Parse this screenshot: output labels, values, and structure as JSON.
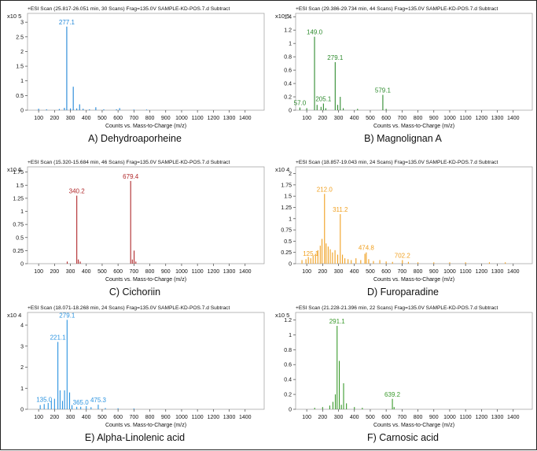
{
  "chart_data": [
    {
      "type": "bar",
      "header": "+ESI Scan (25.817-26.051 min, 30 Scans) Frag=135.0V SAMPLE-KD-POS.7.d  Subtract",
      "exponent_label": "x10 5",
      "xlabel": "Counts vs. Mass-to-Charge (m/z)",
      "caption": "A) Dehydroaporheine",
      "color": "#1f86d8",
      "xlim": [
        30,
        1520
      ],
      "ylim": [
        0,
        3.3
      ],
      "xticks": [
        100,
        200,
        300,
        400,
        500,
        600,
        700,
        800,
        900,
        1000,
        1100,
        1200,
        1300,
        1400
      ],
      "yticks": [
        "0",
        "0.5",
        "1",
        "1.5",
        "2",
        "2.5",
        "3"
      ],
      "ytick_values": [
        0,
        0.5,
        1,
        1.5,
        2,
        2.5,
        3
      ],
      "peaks": [
        [
          100,
          0.05
        ],
        [
          150,
          0.03
        ],
        [
          230,
          0.04
        ],
        [
          262,
          0.08
        ],
        [
          277.1,
          2.85
        ],
        [
          300,
          0.06
        ],
        [
          318,
          0.8
        ],
        [
          340,
          0.06
        ],
        [
          358,
          0.2
        ],
        [
          380,
          0.05
        ],
        [
          420,
          0.03
        ],
        [
          460,
          0.1
        ],
        [
          510,
          0.03
        ],
        [
          590,
          0.03
        ],
        [
          610,
          0.07
        ],
        [
          700,
          0.02
        ],
        [
          780,
          0.02
        ]
      ],
      "labels": [
        {
          "mz": 277.1,
          "text": "277.1"
        }
      ]
    },
    {
      "type": "bar",
      "header": "+ESI Scan (29.386-29.734 min, 44 Scans) Frag=135.0V SAMPLE-KD-POS.7.d  Subtract",
      "exponent_label": "x10 5",
      "xlabel": "Counts vs. Mass-to-Charge (m/z)",
      "caption": "B) Magnolignan A",
      "color": "#2e8b2e",
      "xlim": [
        30,
        1520
      ],
      "ylim": [
        0,
        1.45
      ],
      "xticks": [
        100,
        200,
        300,
        400,
        500,
        600,
        700,
        800,
        900,
        1000,
        1100,
        1200,
        1300,
        1400
      ],
      "yticks": [
        "0",
        "0.2",
        "0.4",
        "0.6",
        "0.8",
        "1",
        "1.2",
        "1.4"
      ],
      "ytick_values": [
        0,
        0.2,
        0.4,
        0.6,
        0.8,
        1,
        1.2,
        1.4
      ],
      "peaks": [
        [
          57,
          0.04
        ],
        [
          100,
          0.03
        ],
        [
          149,
          1.1
        ],
        [
          165,
          0.08
        ],
        [
          190,
          0.05
        ],
        [
          205.1,
          0.1
        ],
        [
          220,
          0.03
        ],
        [
          279.1,
          0.72
        ],
        [
          295,
          0.08
        ],
        [
          311,
          0.2
        ],
        [
          330,
          0.03
        ],
        [
          420,
          0.02
        ],
        [
          579.1,
          0.23
        ],
        [
          600,
          0.02
        ]
      ],
      "labels": [
        {
          "mz": 57.0,
          "text": "57.0"
        },
        {
          "mz": 149.0,
          "text": "149.0"
        },
        {
          "mz": 205.1,
          "text": "205.1"
        },
        {
          "mz": 279.1,
          "text": "279.1"
        },
        {
          "mz": 579.1,
          "text": "579.1"
        }
      ]
    },
    {
      "type": "bar",
      "header": "+ESI Scan (15.320-15.684 min, 46 Scans) Frag=135.0V SAMPLE-KD-POS.7.d  Subtract",
      "exponent_label": "x10 6",
      "xlabel": "Counts vs. Mass-to-Charge (m/z)",
      "caption": "C) Cichoriin",
      "color": "#b0282a",
      "xlim": [
        30,
        1520
      ],
      "ylim": [
        0,
        1.85
      ],
      "xticks": [
        100,
        200,
        300,
        400,
        500,
        600,
        700,
        800,
        900,
        1000,
        1100,
        1200,
        1300,
        1400
      ],
      "yticks": [
        "0",
        "0.25",
        "0.5",
        "0.75",
        "1",
        "1.25",
        "1.5",
        "1.75"
      ],
      "ytick_values": [
        0,
        0.25,
        0.5,
        0.75,
        1,
        1.25,
        1.5,
        1.75
      ],
      "peaks": [
        [
          280,
          0.04
        ],
        [
          340.2,
          1.3
        ],
        [
          350,
          0.08
        ],
        [
          362,
          0.04
        ],
        [
          679.4,
          1.58
        ],
        [
          690,
          0.08
        ],
        [
          701,
          0.25
        ],
        [
          712,
          0.04
        ]
      ],
      "labels": [
        {
          "mz": 340.2,
          "text": "340.2"
        },
        {
          "mz": 679.4,
          "text": "679.4"
        }
      ]
    },
    {
      "type": "bar",
      "header": "+ESI Scan (18.857-19.043 min, 24 Scans) Frag=135.0V SAMPLE-KD-POS.7.d  Subtract",
      "exponent_label": "x10 4",
      "xlabel": "Counts vs. Mass-to-Charge (m/z)",
      "caption": "D) Furoparadine",
      "color": "#f0a020",
      "xlim": [
        30,
        1520
      ],
      "ylim": [
        0,
        2.15
      ],
      "xticks": [
        100,
        200,
        300,
        400,
        500,
        600,
        700,
        800,
        900,
        1000,
        1100,
        1200,
        1300,
        1400
      ],
      "yticks": [
        "0",
        "0.25",
        "0.5",
        "0.75",
        "1",
        "1.25",
        "1.5",
        "1.75",
        "2"
      ],
      "ytick_values": [
        0,
        0.25,
        0.5,
        0.75,
        1,
        1.25,
        1.5,
        1.75,
        2
      ],
      "peaks": [
        [
          70,
          0.08
        ],
        [
          95,
          0.1
        ],
        [
          110,
          0.15
        ],
        [
          125.1,
          0.12
        ],
        [
          140,
          0.18
        ],
        [
          155,
          0.22
        ],
        [
          170,
          0.3
        ],
        [
          185,
          0.4
        ],
        [
          196,
          0.55
        ],
        [
          212.0,
          1.55
        ],
        [
          222,
          0.45
        ],
        [
          235,
          0.38
        ],
        [
          248,
          0.32
        ],
        [
          262,
          0.25
        ],
        [
          278,
          0.3
        ],
        [
          295,
          0.2
        ],
        [
          311.2,
          1.1
        ],
        [
          325,
          0.2
        ],
        [
          340,
          0.12
        ],
        [
          360,
          0.1
        ],
        [
          380,
          0.08
        ],
        [
          410,
          0.12
        ],
        [
          440,
          0.08
        ],
        [
          466,
          0.22
        ],
        [
          474.8,
          0.25
        ],
        [
          490,
          0.1
        ],
        [
          520,
          0.06
        ],
        [
          560,
          0.08
        ],
        [
          600,
          0.05
        ],
        [
          640,
          0.04
        ],
        [
          702.2,
          0.08
        ],
        [
          740,
          0.04
        ],
        [
          800,
          0.03
        ],
        [
          900,
          0.03
        ],
        [
          1000,
          0.03
        ],
        [
          1100,
          0.03
        ],
        [
          1250,
          0.03
        ],
        [
          1350,
          0.03
        ]
      ],
      "labels": [
        {
          "mz": 125.1,
          "text": "125.1"
        },
        {
          "mz": 212.0,
          "text": "212.0"
        },
        {
          "mz": 311.2,
          "text": "311.2"
        },
        {
          "mz": 474.8,
          "text": "474.8"
        },
        {
          "mz": 702.2,
          "text": "702.2"
        }
      ]
    },
    {
      "type": "bar",
      "header": "+ESI Scan (18.071-18.268 min, 24 Scans) Frag=135.0V SAMPLE-KD-POS.7.d  Subtract",
      "exponent_label": "x10 4",
      "xlabel": "Counts vs. Mass-to-Charge (m/z)",
      "caption": "E) Alpha-Linolenic acid",
      "color": "#2a93e0",
      "xlim": [
        30,
        1520
      ],
      "ylim": [
        0,
        4.6
      ],
      "xticks": [
        100,
        200,
        300,
        400,
        500,
        600,
        700,
        800,
        900,
        1000,
        1100,
        1200,
        1300,
        1400
      ],
      "yticks": [
        "0",
        "1",
        "2",
        "3",
        "4"
      ],
      "ytick_values": [
        0,
        1,
        2,
        3,
        4
      ],
      "peaks": [
        [
          110,
          0.2
        ],
        [
          135.0,
          0.25
        ],
        [
          160,
          0.3
        ],
        [
          180,
          0.4
        ],
        [
          200,
          0.5
        ],
        [
          221.1,
          3.2
        ],
        [
          235,
          0.9
        ],
        [
          250,
          0.4
        ],
        [
          263,
          0.9
        ],
        [
          279.1,
          4.25
        ],
        [
          295,
          0.8
        ],
        [
          310,
          0.2
        ],
        [
          340,
          0.12
        ],
        [
          365.0,
          0.12
        ],
        [
          400,
          0.15
        ],
        [
          430,
          0.1
        ],
        [
          475.3,
          0.22
        ],
        [
          520,
          0.06
        ],
        [
          600,
          0.05
        ],
        [
          700,
          0.04
        ]
      ],
      "labels": [
        {
          "mz": 135.0,
          "text": "135.0"
        },
        {
          "mz": 221.1,
          "text": "221.1"
        },
        {
          "mz": 279.1,
          "text": "279.1"
        },
        {
          "mz": 365.0,
          "text": "365.0"
        },
        {
          "mz": 475.3,
          "text": "475.3"
        }
      ]
    },
    {
      "type": "bar",
      "header": "+ESI Scan (21.228-21.396 min, 22 Scans) Frag=135.0V SAMPLE-KD-POS.7.d  Subtract",
      "exponent_label": "x10 5",
      "xlabel": "Counts vs. Mass-to-Charge (m/z)",
      "caption": "F) Carnosic acid",
      "color": "#3a9a2c",
      "xlim": [
        30,
        1520
      ],
      "ylim": [
        0,
        1.3
      ],
      "xticks": [
        100,
        200,
        300,
        400,
        500,
        600,
        700,
        800,
        900,
        1000,
        1100,
        1200,
        1300,
        1400
      ],
      "yticks": [
        "0",
        "0.2",
        "0.4",
        "0.6",
        "0.8",
        "1",
        "1.2"
      ],
      "ytick_values": [
        0,
        0.2,
        0.4,
        0.6,
        0.8,
        1,
        1.2
      ],
      "peaks": [
        [
          150,
          0.02
        ],
        [
          200,
          0.03
        ],
        [
          245,
          0.05
        ],
        [
          265,
          0.1
        ],
        [
          280,
          0.2
        ],
        [
          291.1,
          1.12
        ],
        [
          305,
          0.65
        ],
        [
          318,
          0.06
        ],
        [
          332,
          0.35
        ],
        [
          350,
          0.08
        ],
        [
          400,
          0.03
        ],
        [
          450,
          0.02
        ],
        [
          639.2,
          0.14
        ],
        [
          650,
          0.03
        ]
      ],
      "labels": [
        {
          "mz": 291.1,
          "text": "291.1"
        },
        {
          "mz": 639.2,
          "text": "639.2"
        }
      ]
    }
  ]
}
